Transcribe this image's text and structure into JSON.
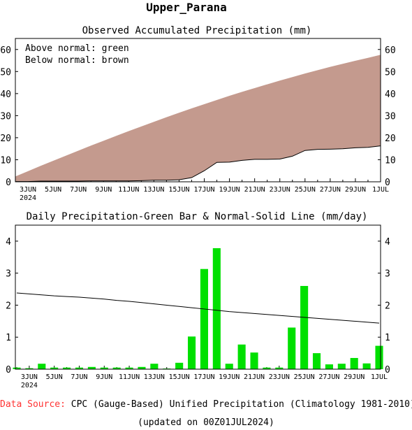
{
  "page_title": "Upper_Parana",
  "colors": {
    "deficit": "#c49a8e",
    "surplus": "#00b000",
    "bar": "#00e000",
    "line": "#000000",
    "source_label": "#ff3333"
  },
  "legend": {
    "above": "Above normal: green",
    "below": "Below normal: brown"
  },
  "footer": {
    "source_label": "Data Source:",
    "source_text": "CPC (Gauge-Based) Unified Precipitation (Climatology 1981-2010)",
    "updated": "(updated on 00Z01JUL2024)"
  },
  "chart_data": [
    {
      "type": "area",
      "title": "Observed Accumulated Precipitation (mm)",
      "xlabel": "",
      "ylabel": "",
      "ylim": [
        0,
        65
      ],
      "yticks": [
        0,
        10,
        20,
        30,
        40,
        50,
        60
      ],
      "x_tick_labels": [
        "3JUN",
        "5JUN",
        "7JUN",
        "9JUN",
        "11JUN",
        "13JUN",
        "15JUN",
        "17JUN",
        "19JUN",
        "21JUN",
        "23JUN",
        "25JUN",
        "27JUN",
        "29JUN",
        "1JUL"
      ],
      "x_year_label": "2024",
      "dates": [
        "2JUN",
        "3JUN",
        "4JUN",
        "5JUN",
        "6JUN",
        "7JUN",
        "8JUN",
        "9JUN",
        "10JUN",
        "11JUN",
        "12JUN",
        "13JUN",
        "14JUN",
        "15JUN",
        "16JUN",
        "17JUN",
        "18JUN",
        "19JUN",
        "20JUN",
        "21JUN",
        "22JUN",
        "23JUN",
        "24JUN",
        "25JUN",
        "26JUN",
        "27JUN",
        "28JUN",
        "29JUN",
        "30JUN",
        "1JUL"
      ],
      "series": [
        {
          "name": "Observed",
          "values": [
            0.1,
            0.1,
            0.3,
            0.3,
            0.3,
            0.3,
            0.4,
            0.4,
            0.4,
            0.4,
            0.5,
            0.7,
            0.7,
            0.9,
            1.9,
            5.0,
            8.8,
            8.9,
            9.7,
            10.2,
            10.2,
            10.3,
            11.6,
            14.2,
            14.7,
            14.8,
            15.0,
            15.4,
            15.6,
            16.3
          ]
        },
        {
          "name": "Normal",
          "values": [
            2.4,
            4.8,
            7.2,
            9.5,
            11.8,
            14.1,
            16.4,
            18.6,
            20.8,
            23.0,
            25.1,
            27.2,
            29.3,
            31.3,
            33.3,
            35.2,
            37.1,
            39.0,
            40.8,
            42.5,
            44.2,
            45.9,
            47.5,
            49.1,
            50.6,
            52.1,
            53.5,
            54.9,
            56.2,
            57.6
          ]
        }
      ]
    },
    {
      "type": "bar",
      "title": "Daily Precipitation-Green Bar & Normal-Solid Line (mm/day)",
      "xlabel": "",
      "ylabel": "",
      "ylim": [
        0,
        4.5
      ],
      "yticks": [
        0,
        1,
        2,
        3,
        4
      ],
      "x_tick_labels": [
        "3JUN",
        "5JUN",
        "7JUN",
        "9JUN",
        "11JUN",
        "13JUN",
        "15JUN",
        "17JUN",
        "19JUN",
        "21JUN",
        "23JUN",
        "25JUN",
        "27JUN",
        "29JUN",
        "1JUL"
      ],
      "x_year_label": "2024",
      "dates": [
        "2JUN",
        "3JUN",
        "4JUN",
        "5JUN",
        "6JUN",
        "7JUN",
        "8JUN",
        "9JUN",
        "10JUN",
        "11JUN",
        "12JUN",
        "13JUN",
        "14JUN",
        "15JUN",
        "16JUN",
        "17JUN",
        "18JUN",
        "19JUN",
        "20JUN",
        "21JUN",
        "22JUN",
        "23JUN",
        "24JUN",
        "25JUN",
        "26JUN",
        "27JUN",
        "28JUN",
        "29JUN",
        "30JUN",
        "1JUL"
      ],
      "series": [
        {
          "name": "Daily Precipitation",
          "values": [
            0.05,
            0.03,
            0.17,
            0.05,
            0.05,
            0.05,
            0.07,
            0.05,
            0.05,
            0.05,
            0.07,
            0.17,
            0.02,
            0.2,
            1.02,
            3.13,
            3.78,
            0.17,
            0.77,
            0.52,
            0.05,
            0.05,
            1.3,
            2.6,
            0.5,
            0.15,
            0.17,
            0.35,
            0.18,
            0.73
          ]
        },
        {
          "name": "Normal",
          "values": [
            2.38,
            2.35,
            2.32,
            2.29,
            2.27,
            2.25,
            2.22,
            2.19,
            2.15,
            2.12,
            2.08,
            2.04,
            2.0,
            1.96,
            1.92,
            1.88,
            1.84,
            1.8,
            1.77,
            1.74,
            1.71,
            1.68,
            1.65,
            1.62,
            1.59,
            1.56,
            1.53,
            1.5,
            1.47,
            1.44
          ]
        }
      ]
    }
  ]
}
